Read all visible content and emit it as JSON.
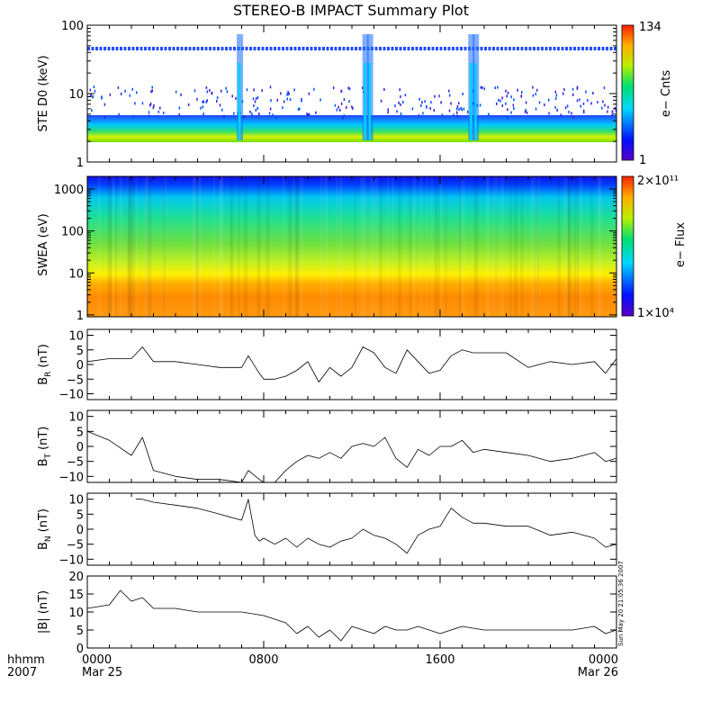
{
  "title": "STEREO-B IMPACT Summary Plot",
  "timestamp": "Sun May 20 21:05:36 2007",
  "colors": {
    "background": "#ffffff",
    "axis": "#000000",
    "trace": "#000000",
    "ste_line": "#1f4cff"
  },
  "x_axis": {
    "row_label": "hhmm",
    "year_label": "2007",
    "ticks": [
      "0000",
      "0800",
      "1600",
      "0000"
    ],
    "dates": [
      "Mar 25",
      "",
      "",
      "Mar 26"
    ]
  },
  "chart_data": [
    {
      "type": "heatmap",
      "ylabel": "STE D0 (keV)",
      "yscale": "log",
      "ylim": [
        1,
        100
      ],
      "yticks": [
        "1",
        "10",
        "100"
      ],
      "colorbar": {
        "label": "e− Cnts",
        "max": "134",
        "min": "1"
      }
    },
    {
      "type": "heatmap",
      "ylabel": "SWEA (eV)",
      "yscale": "log",
      "ylim": [
        0.9,
        2000
      ],
      "yticks": [
        "1",
        "10",
        "100",
        "1000"
      ],
      "colorbar": {
        "label": "e− Flux",
        "max": "2×10¹¹",
        "min": "1×10⁴"
      }
    },
    {
      "type": "line",
      "ylabel": "B",
      "ylabel_sub": "R",
      "ylabel_unit": "(nT)",
      "ylim": [
        -12,
        12
      ],
      "yticks": [
        "10",
        "5",
        "0",
        "−5",
        "−10"
      ],
      "x_hours": [
        0,
        1,
        2,
        2.5,
        3,
        4,
        5,
        6,
        7,
        7.3,
        7.8,
        8,
        8.5,
        9,
        9.5,
        10,
        10.5,
        11,
        11.5,
        12,
        12.5,
        13,
        13.5,
        14,
        14.5,
        15,
        15.5,
        16,
        16.5,
        17,
        17.5,
        18,
        19,
        20,
        21,
        22,
        23,
        23.5,
        24
      ],
      "values": [
        1,
        2,
        2,
        6,
        1,
        1,
        0,
        -1,
        -1,
        3,
        -3,
        -5,
        -5,
        -4,
        -2,
        1,
        -6,
        -1,
        -4,
        -1,
        6,
        4,
        -1,
        -3,
        5,
        1,
        -3,
        -2,
        3,
        5,
        4,
        4,
        4,
        -1,
        1,
        0,
        1,
        -3,
        2
      ]
    },
    {
      "type": "line",
      "ylabel": "B",
      "ylabel_sub": "T",
      "ylabel_unit": "(nT)",
      "ylim": [
        -12,
        12
      ],
      "yticks": [
        "10",
        "5",
        "0",
        "−5",
        "−10"
      ],
      "x_hours": [
        0,
        1,
        2,
        2.5,
        3,
        4,
        5,
        6,
        7,
        7.3,
        7.8,
        8,
        8.5,
        9,
        9.5,
        10,
        10.5,
        11,
        11.5,
        12,
        12.5,
        13,
        13.5,
        14,
        14.5,
        15,
        15.5,
        16,
        16.5,
        17,
        17.5,
        18,
        19,
        20,
        21,
        22,
        23,
        23.5,
        24
      ],
      "values": [
        5,
        2,
        -3,
        3,
        -8,
        -10,
        -11,
        -11,
        -12,
        -8,
        -11,
        -12,
        -12,
        -8,
        -5,
        -3,
        -4,
        -2,
        -4,
        0,
        1,
        0,
        3,
        -4,
        -7,
        -1,
        -3,
        0,
        0,
        2,
        -2,
        -1,
        -2,
        -3,
        -5,
        -4,
        -2,
        -5,
        -4
      ]
    },
    {
      "type": "line",
      "ylabel": "B",
      "ylabel_sub": "N",
      "ylabel_unit": "(nT)",
      "ylim": [
        -12,
        12
      ],
      "yticks": [
        "10",
        "5",
        "0",
        "−5",
        "−10"
      ],
      "x_hours": [
        2.2,
        2.5,
        3,
        4,
        5,
        6,
        7,
        7.3,
        7.6,
        7.8,
        8,
        8.5,
        9,
        9.5,
        10,
        10.5,
        11,
        11.5,
        12,
        12.5,
        13,
        13.5,
        14,
        14.5,
        15,
        15.5,
        16,
        16.5,
        17,
        17.5,
        18,
        19,
        20,
        21,
        22,
        23,
        23.5,
        24
      ],
      "values": [
        10,
        10,
        9,
        8,
        7,
        5,
        3,
        10,
        -2,
        -4,
        -3,
        -5,
        -3,
        -6,
        -3,
        -5,
        -6,
        -4,
        -3,
        0,
        -2,
        -3,
        -5,
        -8,
        -2,
        0,
        1,
        7,
        4,
        2,
        2,
        1,
        1,
        -2,
        -1,
        -3,
        -6,
        -5
      ]
    },
    {
      "type": "line",
      "ylabel": "|B| (nT)",
      "ylim": [
        0,
        20
      ],
      "yticks": [
        "20",
        "15",
        "10",
        "5",
        "0"
      ],
      "x_hours": [
        0,
        1,
        1.5,
        2,
        2.5,
        3,
        4,
        5,
        6,
        7,
        8,
        9,
        9.5,
        10,
        10.5,
        11,
        11.5,
        12,
        12.5,
        13,
        13.5,
        14,
        14.5,
        15,
        15.5,
        16,
        17,
        18,
        19,
        20,
        21,
        22,
        23,
        23.5,
        24
      ],
      "values": [
        11,
        12,
        16,
        13,
        14,
        11,
        11,
        10,
        10,
        10,
        9,
        7,
        4,
        6,
        3,
        5,
        2,
        6,
        5,
        4,
        6,
        5,
        5,
        6,
        5,
        4,
        6,
        5,
        5,
        5,
        5,
        5,
        6,
        4,
        5
      ]
    }
  ]
}
